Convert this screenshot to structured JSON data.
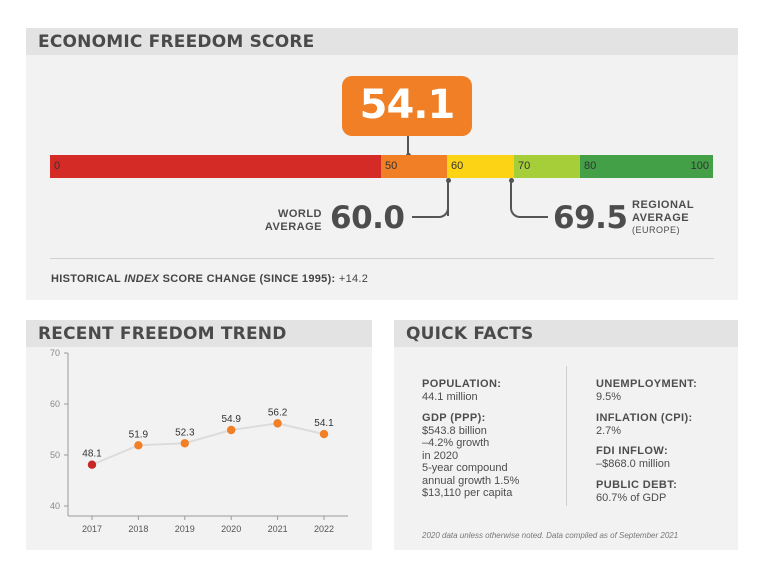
{
  "score_panel": {
    "title": "ECONOMIC FREEDOM SCORE",
    "score": "54.1",
    "scale_labels": [
      "0",
      "50",
      "60",
      "70",
      "80",
      "100"
    ],
    "scale_colors": [
      "#d42b27",
      "#f07f25",
      "#fdd316",
      "#a6ce39",
      "#43a047"
    ],
    "world_average_label": [
      "WORLD",
      "AVERAGE"
    ],
    "world_average_value": "60.0",
    "regional_average_label": [
      "REGIONAL",
      "AVERAGE"
    ],
    "regional_average_sub": "(EUROPE)",
    "regional_average_value": "69.5",
    "historical_prefix": "HISTORICAL ",
    "historical_index": "INDEX",
    "historical_suffix": " SCORE CHANGE (SINCE 1995):",
    "historical_change": " +14.2"
  },
  "trend_panel": {
    "title": "RECENT FREEDOM TREND"
  },
  "chart_data": {
    "type": "line",
    "x": [
      "2017",
      "2018",
      "2019",
      "2020",
      "2021",
      "2022"
    ],
    "values": [
      48.1,
      51.9,
      52.3,
      54.9,
      56.2,
      54.1
    ],
    "data_labels": [
      "48.1",
      "51.9",
      "52.3",
      "54.9",
      "56.2",
      "54.1"
    ],
    "ylim": [
      40,
      70
    ],
    "yticks": [
      40,
      50,
      60,
      70
    ],
    "line_color": "#dcdcdc",
    "point_color": "#f07f25",
    "first_point_color": "#c62828",
    "grid": false,
    "title": "",
    "xlabel": "",
    "ylabel": ""
  },
  "facts_panel": {
    "title": "QUICK FACTS",
    "left": [
      {
        "label": "POPULATION:",
        "lines": [
          "44.1 million"
        ]
      },
      {
        "label": "GDP (PPP):",
        "lines": [
          "$543.8 billion",
          "–4.2% growth",
          "in 2020",
          "5-year compound",
          "annual growth 1.5%",
          "$13,110 per capita"
        ]
      }
    ],
    "right": [
      {
        "label": "UNEMPLOYMENT:",
        "lines": [
          "9.5%"
        ]
      },
      {
        "label": "INFLATION (CPI):",
        "lines": [
          "2.7%"
        ]
      },
      {
        "label": "FDI INFLOW:",
        "lines": [
          "–$868.0 million"
        ]
      },
      {
        "label": "PUBLIC DEBT:",
        "lines": [
          "60.7% of GDP"
        ]
      }
    ],
    "note": "2020 data unless otherwise noted. Data compiled as of September 2021"
  }
}
